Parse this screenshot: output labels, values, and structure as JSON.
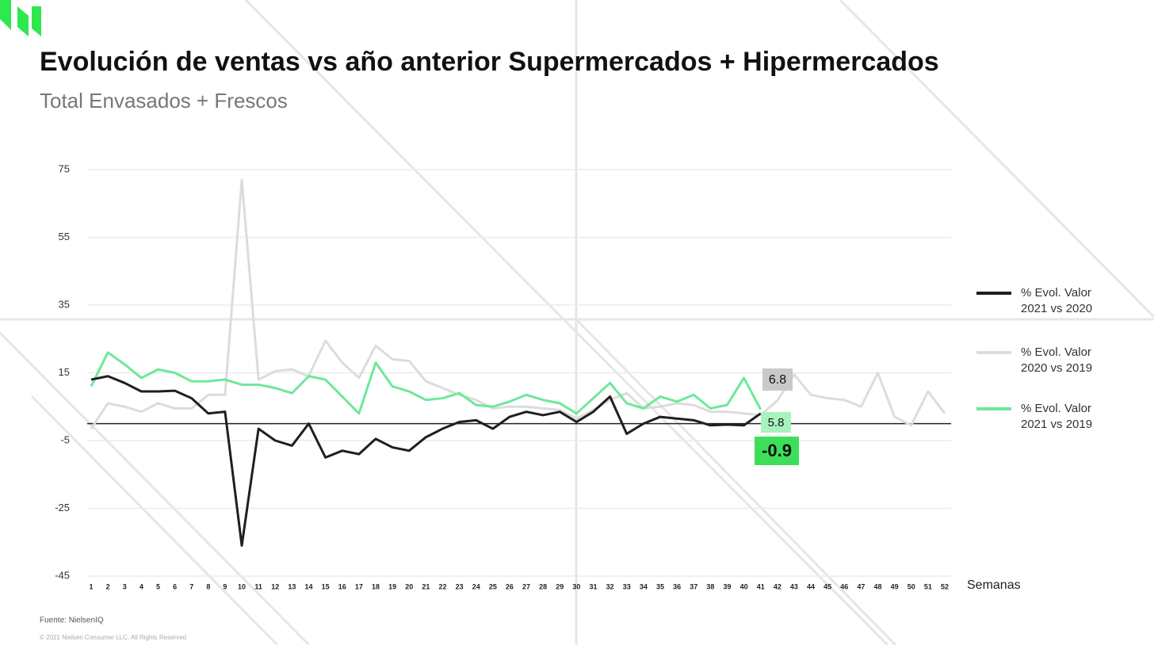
{
  "chart_data": {
    "type": "line",
    "title": "Evolución de ventas vs año anterior Supermercados + Hipermercados",
    "subtitle": "Total Envasados + Frescos",
    "x_label": "Semanas",
    "source": "Fuente: NielsenIQ",
    "copyright": "© 2021 Nielsen Consumer LLC. All Rights Reserved",
    "categories": [
      "1",
      "2",
      "3",
      "4",
      "5",
      "6",
      "7",
      "8",
      "9",
      "10",
      "11",
      "12",
      "13",
      "14",
      "15",
      "16",
      "17",
      "18",
      "19",
      "20",
      "21",
      "22",
      "23",
      "24",
      "25",
      "26",
      "27",
      "28",
      "29",
      "30",
      "31",
      "32",
      "33",
      "34",
      "35",
      "36",
      "37",
      "38",
      "39",
      "40",
      "41",
      "42",
      "43",
      "44",
      "45",
      "46",
      "47",
      "48",
      "49",
      "50",
      "51",
      "52"
    ],
    "ylim": [
      -45,
      75
    ],
    "yticks": [
      75,
      55,
      35,
      15,
      -5,
      -25,
      -45
    ],
    "grid": true,
    "series": [
      {
        "name": "% Evol. Valor 2021 vs 2020",
        "color": "#1f1f1f",
        "values": [
          13,
          14,
          12,
          9.5,
          9.5,
          9.7,
          7.5,
          3,
          3.5,
          -36,
          -1.5,
          -5,
          -6.5,
          0,
          -10,
          -8,
          -9,
          -4.5,
          -7,
          -8,
          -4,
          -1.5,
          0.5,
          1,
          -1.5,
          2,
          3.5,
          2.5,
          3.5,
          0.5,
          3.5,
          8,
          -3,
          0,
          2,
          1.5,
          1,
          -0.5,
          -0.3,
          -0.5,
          3,
          null,
          null,
          null,
          null,
          null,
          null,
          null,
          null,
          null,
          null,
          null
        ]
      },
      {
        "name": "% Evol. Valor 2020 vs 2019",
        "color": "#dcdcdc",
        "values": [
          -1.5,
          6,
          5,
          3.5,
          6,
          4.5,
          4.5,
          8.5,
          8.5,
          72,
          13,
          15.5,
          16,
          14,
          24.5,
          18,
          13.5,
          23,
          19,
          18.5,
          12.5,
          10.5,
          8.5,
          7,
          4.5,
          5,
          5,
          4.5,
          4,
          1.5,
          4,
          7,
          9,
          4.5,
          5,
          6,
          5.5,
          3.5,
          3.5,
          3,
          2.5,
          6.8,
          14.5,
          8.5,
          7.5,
          7,
          5,
          15,
          2,
          -0.5,
          9.5,
          3
        ]
      },
      {
        "name": "% Evol. Valor 2021 vs 2019",
        "color": "#6ee89a",
        "values": [
          11,
          21,
          17.5,
          13.5,
          16,
          15,
          12.5,
          12.5,
          13,
          11.5,
          11.5,
          10.5,
          9,
          14,
          13,
          8,
          3,
          18,
          11,
          9.5,
          7,
          7.5,
          9,
          5.5,
          5,
          6.5,
          8.5,
          7,
          6,
          3,
          7.5,
          12,
          6,
          4.5,
          8,
          6.5,
          8.5,
          4.5,
          5.5,
          13.5,
          4.2,
          null,
          null,
          null,
          null,
          null,
          null,
          null,
          null,
          null,
          null,
          null
        ]
      }
    ],
    "annotations": [
      {
        "text": "6.8",
        "color": "#c9c9c9"
      },
      {
        "text": "5.8",
        "color": "#a9f2bd"
      },
      {
        "text": "-0.9",
        "color": "#3ddf5a"
      }
    ]
  }
}
